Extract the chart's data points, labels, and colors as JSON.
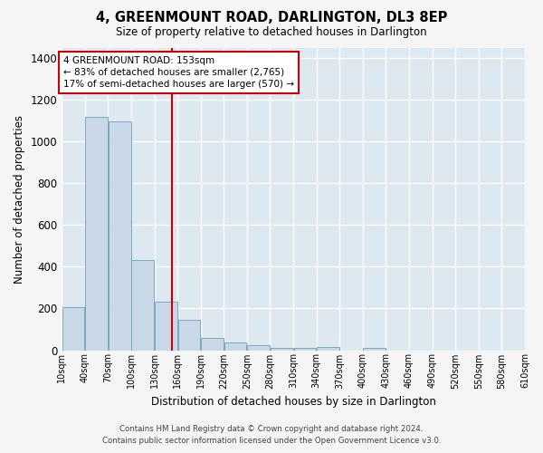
{
  "title": "4, GREENMOUNT ROAD, DARLINGTON, DL3 8EP",
  "subtitle": "Size of property relative to detached houses in Darlington",
  "xlabel": "Distribution of detached houses by size in Darlington",
  "ylabel": "Number of detached properties",
  "bar_color": "#c8d8e8",
  "bar_edge_color": "#7aaabb",
  "background_color": "#dde8f0",
  "grid_color": "#ffffff",
  "vline_x": 153,
  "vline_color": "#cc0000",
  "annotation_text": "4 GREENMOUNT ROAD: 153sqm\n← 83% of detached houses are smaller (2,765)\n17% of semi-detached houses are larger (570) →",
  "annotation_box_color": "#cc0000",
  "footer_line1": "Contains HM Land Registry data © Crown copyright and database right 2024.",
  "footer_line2": "Contains public sector information licensed under the Open Government Licence v3.0.",
  "bin_edges": [
    10,
    40,
    70,
    100,
    130,
    160,
    190,
    220,
    250,
    280,
    310,
    340,
    370,
    400,
    430,
    460,
    490,
    520,
    550,
    580,
    610
  ],
  "bin_labels": [
    "10sqm",
    "40sqm",
    "70sqm",
    "100sqm",
    "130sqm",
    "160sqm",
    "190sqm",
    "220sqm",
    "250sqm",
    "280sqm",
    "310sqm",
    "340sqm",
    "370sqm",
    "400sqm",
    "430sqm",
    "460sqm",
    "490sqm",
    "520sqm",
    "550sqm",
    "580sqm",
    "610sqm"
  ],
  "counts": [
    207,
    1120,
    1095,
    430,
    232,
    147,
    57,
    38,
    23,
    10,
    13,
    17,
    0,
    10,
    0,
    0,
    0,
    0,
    0,
    0
  ],
  "ylim": [
    0,
    1450
  ],
  "yticks": [
    0,
    200,
    400,
    600,
    800,
    1000,
    1200,
    1400
  ],
  "fig_bg": "#f5f5f5"
}
